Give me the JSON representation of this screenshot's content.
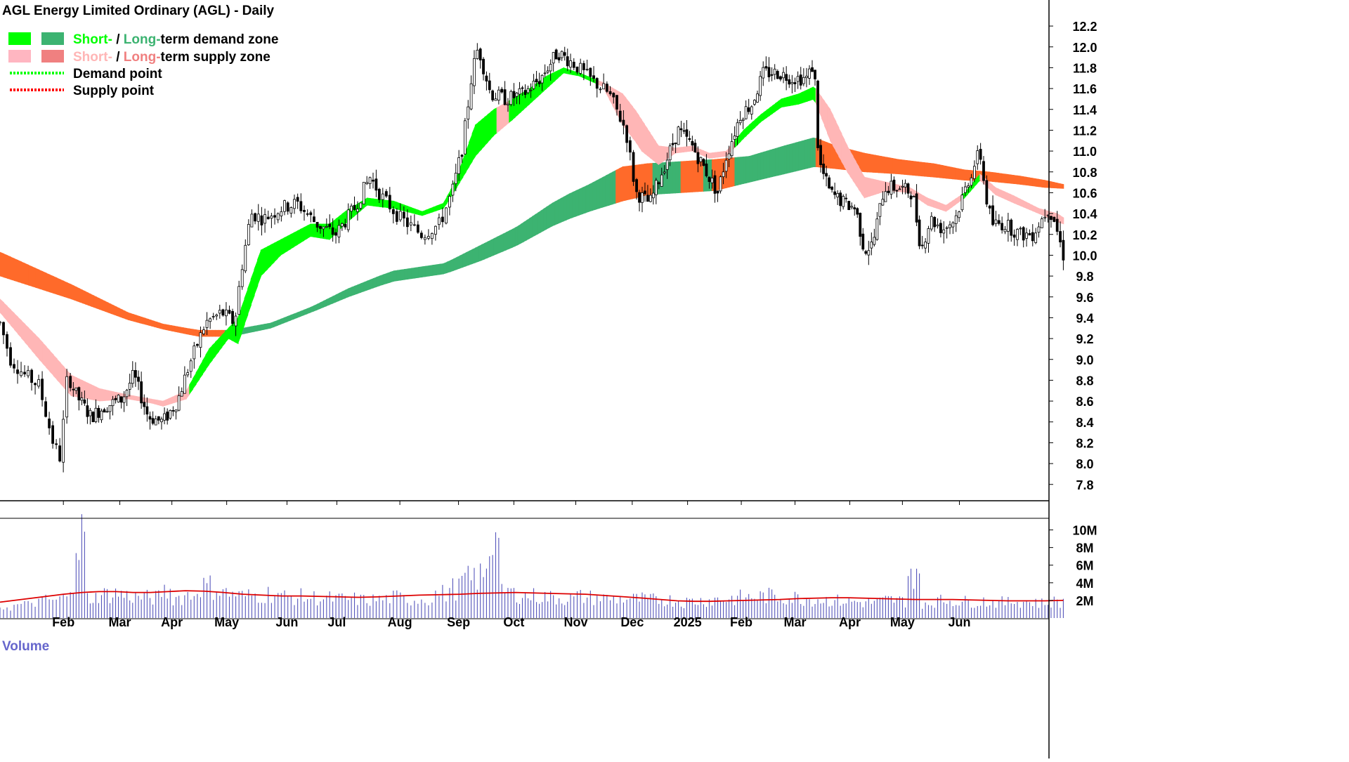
{
  "header": {
    "title": "AGL Energy Limited Ordinary (AGL) - Daily"
  },
  "legend": {
    "items": [
      {
        "parts": [
          {
            "text": "Short-",
            "color": "#00ff00"
          },
          {
            "text": " / ",
            "color": "#000000"
          },
          {
            "text": "Long-",
            "color": "#3cb371"
          },
          {
            "text": "term demand zone",
            "color": "#000000"
          }
        ],
        "swatches": [
          "#00ff00",
          "#3cb371"
        ]
      },
      {
        "parts": [
          {
            "text": "Short-",
            "color": "#ffb6b6"
          },
          {
            "text": " / ",
            "color": "#000000"
          },
          {
            "text": "Long-",
            "color": "#f08080"
          },
          {
            "text": "term supply zone",
            "color": "#000000"
          }
        ],
        "swatches": [
          "#ffb6c1",
          "#f08080"
        ]
      },
      {
        "parts": [
          {
            "text": "Demand point",
            "color": "#000000"
          }
        ],
        "line": "#00ff00"
      },
      {
        "parts": [
          {
            "text": "Supply point",
            "color": "#000000"
          }
        ],
        "line": "#ff0000"
      }
    ]
  },
  "colors": {
    "short_demand": "#00ff00",
    "long_demand": "#3cb371",
    "short_supply": "#ffb6b6",
    "long_supply": "#ff6a2a",
    "candle": "#000000",
    "volume_bar": "#5555bb",
    "volume_avg": "#dd0000",
    "volume_label": "#6666cc"
  },
  "chart_data": {
    "type": "line",
    "title": "AGL Energy Limited Ordinary (AGL) - Daily",
    "xlabel": "",
    "ylabel": "",
    "x_ticks": [
      "Feb",
      "Mar",
      "Apr",
      "May",
      "Jun",
      "Jul",
      "Aug",
      "Sep",
      "Oct",
      "Nov",
      "Dec",
      "2025",
      "Feb",
      "Mar",
      "Apr",
      "May",
      "Jun"
    ],
    "y_ticks": [
      "12.2",
      "12.0",
      "11.8",
      "11.6",
      "11.4",
      "11.2",
      "11.0",
      "10.8",
      "10.6",
      "10.4",
      "10.2",
      "10.0",
      "9.8",
      "9.6",
      "9.4",
      "9.2",
      "9.0",
      "8.8",
      "8.6",
      "8.4",
      "8.2",
      "8.0",
      "7.8"
    ],
    "ylim": [
      7.65,
      12.45
    ],
    "grid": false,
    "legend_position": "top-left",
    "price_path": [
      {
        "m": 0.0,
        "p": 9.35
      },
      {
        "m": 0.15,
        "p": 9.0
      },
      {
        "m": 0.35,
        "p": 8.85
      },
      {
        "m": 0.55,
        "p": 8.75
      },
      {
        "m": 0.75,
        "p": 8.2
      },
      {
        "m": 0.85,
        "p": 8.05
      },
      {
        "m": 0.95,
        "p": 8.85
      },
      {
        "m": 1.1,
        "p": 8.65
      },
      {
        "m": 1.35,
        "p": 8.45
      },
      {
        "m": 1.6,
        "p": 8.55
      },
      {
        "m": 1.9,
        "p": 8.62
      },
      {
        "m": 2.1,
        "p": 8.85
      },
      {
        "m": 2.35,
        "p": 8.45
      },
      {
        "m": 2.6,
        "p": 8.4
      },
      {
        "m": 2.85,
        "p": 8.6
      },
      {
        "m": 3.05,
        "p": 8.95
      },
      {
        "m": 3.3,
        "p": 9.35
      },
      {
        "m": 3.55,
        "p": 9.45
      },
      {
        "m": 3.75,
        "p": 9.35
      },
      {
        "m": 3.85,
        "p": 9.85
      },
      {
        "m": 4.0,
        "p": 10.4
      },
      {
        "m": 4.2,
        "p": 10.35
      },
      {
        "m": 4.45,
        "p": 10.45
      },
      {
        "m": 4.7,
        "p": 10.5
      },
      {
        "m": 5.0,
        "p": 10.3
      },
      {
        "m": 5.3,
        "p": 10.2
      },
      {
        "m": 5.6,
        "p": 10.45
      },
      {
        "m": 5.85,
        "p": 10.75
      },
      {
        "m": 6.05,
        "p": 10.55
      },
      {
        "m": 6.3,
        "p": 10.35
      },
      {
        "m": 6.6,
        "p": 10.2
      },
      {
        "m": 6.85,
        "p": 10.3
      },
      {
        "m": 7.05,
        "p": 10.65
      },
      {
        "m": 7.2,
        "p": 11.05
      },
      {
        "m": 7.35,
        "p": 11.75
      },
      {
        "m": 7.45,
        "p": 12.0
      },
      {
        "m": 7.65,
        "p": 11.55
      },
      {
        "m": 7.9,
        "p": 11.5
      },
      {
        "m": 8.2,
        "p": 11.55
      },
      {
        "m": 8.5,
        "p": 11.7
      },
      {
        "m": 8.8,
        "p": 11.95
      },
      {
        "m": 9.05,
        "p": 11.85
      },
      {
        "m": 9.3,
        "p": 11.7
      },
      {
        "m": 9.6,
        "p": 11.55
      },
      {
        "m": 9.85,
        "p": 11.2
      },
      {
        "m": 10.0,
        "p": 10.6
      },
      {
        "m": 10.25,
        "p": 10.5
      },
      {
        "m": 10.5,
        "p": 10.85
      },
      {
        "m": 10.75,
        "p": 11.2
      },
      {
        "m": 11.0,
        "p": 11.05
      },
      {
        "m": 11.25,
        "p": 10.8
      },
      {
        "m": 11.45,
        "p": 10.6
      },
      {
        "m": 11.6,
        "p": 10.95
      },
      {
        "m": 11.85,
        "p": 11.35
      },
      {
        "m": 12.05,
        "p": 11.45
      },
      {
        "m": 12.25,
        "p": 11.75
      },
      {
        "m": 12.5,
        "p": 11.75
      },
      {
        "m": 12.75,
        "p": 11.7
      },
      {
        "m": 13.0,
        "p": 11.7
      },
      {
        "m": 13.12,
        "p": 11.85
      },
      {
        "m": 13.2,
        "p": 10.9
      },
      {
        "m": 13.4,
        "p": 10.6
      },
      {
        "m": 13.65,
        "p": 10.5
      },
      {
        "m": 13.85,
        "p": 10.45
      },
      {
        "m": 14.0,
        "p": 10.05
      },
      {
        "m": 14.15,
        "p": 10.1
      },
      {
        "m": 14.35,
        "p": 10.65
      },
      {
        "m": 14.6,
        "p": 10.65
      },
      {
        "m": 14.85,
        "p": 10.6
      },
      {
        "m": 15.0,
        "p": 10.05
      },
      {
        "m": 15.15,
        "p": 10.35
      },
      {
        "m": 15.35,
        "p": 10.25
      },
      {
        "m": 15.55,
        "p": 10.35
      },
      {
        "m": 15.75,
        "p": 10.7
      },
      {
        "m": 15.95,
        "p": 11.0
      },
      {
        "m": 16.05,
        "p": 10.55
      },
      {
        "m": 16.15,
        "p": 10.3
      },
      {
        "m": 16.35,
        "p": 10.3
      },
      {
        "m": 16.6,
        "p": 10.2
      },
      {
        "m": 16.8,
        "p": 10.2
      },
      {
        "m": 17.05,
        "p": 10.45
      },
      {
        "m": 17.15,
        "p": 10.35
      },
      {
        "m": 17.3,
        "p": 10.0
      }
    ],
    "short_zone": [
      {
        "m": 0.0,
        "lo": 9.45,
        "hi": 9.58
      },
      {
        "m": 0.55,
        "lo": 9.0,
        "hi": 9.2
      },
      {
        "m": 1.0,
        "lo": 8.65,
        "hi": 8.85
      },
      {
        "m": 1.5,
        "lo": 8.6,
        "hi": 8.72
      },
      {
        "m": 2.0,
        "lo": 8.62,
        "hi": 8.66
      },
      {
        "m": 2.4,
        "lo": 8.58,
        "hi": 8.62
      },
      {
        "m": 2.6,
        "lo": 8.55,
        "hi": 8.6
      },
      {
        "m": 3.0,
        "lo": 8.62,
        "hi": 8.7
      },
      {
        "m": 3.35,
        "lo": 8.95,
        "hi": 9.1
      },
      {
        "m": 3.65,
        "lo": 9.2,
        "hi": 9.3
      },
      {
        "m": 3.8,
        "lo": 9.15,
        "hi": 9.4
      },
      {
        "m": 4.15,
        "lo": 9.8,
        "hi": 10.05
      },
      {
        "m": 4.45,
        "lo": 10.0,
        "hi": 10.15
      },
      {
        "m": 4.9,
        "lo": 10.18,
        "hi": 10.3
      },
      {
        "m": 5.2,
        "lo": 10.15,
        "hi": 10.3
      },
      {
        "m": 5.45,
        "lo": 10.3,
        "hi": 10.42
      },
      {
        "m": 5.8,
        "lo": 10.48,
        "hi": 10.55
      },
      {
        "m": 6.2,
        "lo": 10.45,
        "hi": 10.52
      },
      {
        "m": 6.6,
        "lo": 10.38,
        "hi": 10.42
      },
      {
        "m": 6.9,
        "lo": 10.45,
        "hi": 10.5
      },
      {
        "m": 7.1,
        "lo": 10.65,
        "hi": 10.75
      },
      {
        "m": 7.4,
        "lo": 10.95,
        "hi": 11.25
      },
      {
        "m": 7.7,
        "lo": 11.15,
        "hi": 11.4
      },
      {
        "m": 8.0,
        "lo": 11.3,
        "hi": 11.5
      },
      {
        "m": 8.3,
        "lo": 11.45,
        "hi": 11.6
      },
      {
        "m": 8.6,
        "lo": 11.6,
        "hi": 11.72
      },
      {
        "m": 8.9,
        "lo": 11.75,
        "hi": 11.8
      },
      {
        "m": 9.15,
        "lo": 11.72,
        "hi": 11.75
      },
      {
        "m": 9.5,
        "lo": 11.62,
        "hi": 11.66
      },
      {
        "m": 9.8,
        "lo": 11.25,
        "hi": 11.55
      },
      {
        "m": 10.1,
        "lo": 11.0,
        "hi": 11.3
      },
      {
        "m": 10.4,
        "lo": 10.87,
        "hi": 11.05
      },
      {
        "m": 10.7,
        "lo": 10.98,
        "hi": 11.03
      },
      {
        "m": 11.0,
        "lo": 11.0,
        "hi": 11.05
      },
      {
        "m": 11.3,
        "lo": 10.93,
        "hi": 10.98
      },
      {
        "m": 11.6,
        "lo": 10.95,
        "hi": 11.0
      },
      {
        "m": 11.9,
        "lo": 11.12,
        "hi": 11.2
      },
      {
        "m": 12.2,
        "lo": 11.28,
        "hi": 11.35
      },
      {
        "m": 12.55,
        "lo": 11.42,
        "hi": 11.5
      },
      {
        "m": 12.85,
        "lo": 11.45,
        "hi": 11.55
      },
      {
        "m": 13.12,
        "lo": 11.5,
        "hi": 11.62
      },
      {
        "m": 13.4,
        "lo": 11.1,
        "hi": 11.4
      },
      {
        "m": 13.7,
        "lo": 10.8,
        "hi": 11.05
      },
      {
        "m": 14.0,
        "lo": 10.55,
        "hi": 10.75
      },
      {
        "m": 14.4,
        "lo": 10.62,
        "hi": 10.7
      },
      {
        "m": 14.8,
        "lo": 10.6,
        "hi": 10.65
      },
      {
        "m": 15.1,
        "lo": 10.48,
        "hi": 10.55
      },
      {
        "m": 15.4,
        "lo": 10.42,
        "hi": 10.48
      },
      {
        "m": 15.7,
        "lo": 10.55,
        "hi": 10.6
      },
      {
        "m": 15.95,
        "lo": 10.72,
        "hi": 10.78
      },
      {
        "m": 16.2,
        "lo": 10.58,
        "hi": 10.65
      },
      {
        "m": 16.5,
        "lo": 10.5,
        "hi": 10.57
      },
      {
        "m": 16.9,
        "lo": 10.4,
        "hi": 10.45
      },
      {
        "m": 17.2,
        "lo": 10.32,
        "hi": 10.4
      },
      {
        "m": 17.3,
        "lo": 10.3,
        "hi": 10.36
      }
    ],
    "long_zone": [
      {
        "m": 0.0,
        "lo": 9.8,
        "hi": 10.03
      },
      {
        "m": 1.0,
        "lo": 9.58,
        "hi": 9.72
      },
      {
        "m": 2.0,
        "lo": 9.38,
        "hi": 9.45
      },
      {
        "m": 2.6,
        "lo": 9.29,
        "hi": 9.34
      },
      {
        "m": 3.2,
        "lo": 9.22,
        "hi": 9.28
      },
      {
        "m": 3.7,
        "lo": 9.22,
        "hi": 9.28
      },
      {
        "m": 4.3,
        "lo": 9.3,
        "hi": 9.35
      },
      {
        "m": 4.9,
        "lo": 9.45,
        "hi": 9.5
      },
      {
        "m": 5.5,
        "lo": 9.6,
        "hi": 9.68
      },
      {
        "m": 6.2,
        "lo": 9.75,
        "hi": 9.85
      },
      {
        "m": 6.9,
        "lo": 9.82,
        "hi": 9.92
      },
      {
        "m": 7.5,
        "lo": 9.95,
        "hi": 10.1
      },
      {
        "m": 8.1,
        "lo": 10.1,
        "hi": 10.28
      },
      {
        "m": 8.7,
        "lo": 10.28,
        "hi": 10.5
      },
      {
        "m": 9.3,
        "lo": 10.42,
        "hi": 10.68
      },
      {
        "m": 9.8,
        "lo": 10.52,
        "hi": 10.85
      },
      {
        "m": 10.2,
        "lo": 10.58,
        "hi": 10.88
      },
      {
        "m": 10.8,
        "lo": 10.6,
        "hi": 10.9
      },
      {
        "m": 11.4,
        "lo": 10.62,
        "hi": 10.92
      },
      {
        "m": 12.0,
        "lo": 10.7,
        "hi": 10.95
      },
      {
        "m": 12.6,
        "lo": 10.78,
        "hi": 11.05
      },
      {
        "m": 13.12,
        "lo": 10.85,
        "hi": 11.13
      },
      {
        "m": 13.5,
        "lo": 10.83,
        "hi": 11.05
      },
      {
        "m": 14.0,
        "lo": 10.8,
        "hi": 10.98
      },
      {
        "m": 14.6,
        "lo": 10.78,
        "hi": 10.92
      },
      {
        "m": 15.2,
        "lo": 10.75,
        "hi": 10.88
      },
      {
        "m": 15.7,
        "lo": 10.72,
        "hi": 10.82
      },
      {
        "m": 16.1,
        "lo": 10.71,
        "hi": 10.8
      },
      {
        "m": 16.6,
        "lo": 10.68,
        "hi": 10.76
      },
      {
        "m": 17.0,
        "lo": 10.65,
        "hi": 10.72
      },
      {
        "m": 17.3,
        "lo": 10.64,
        "hi": 10.68
      }
    ],
    "demand_periods_short": [
      [
        3.05,
        7.75
      ],
      [
        7.95,
        9.4
      ],
      [
        11.75,
        13.15
      ],
      [
        15.65,
        15.95
      ]
    ],
    "demand_periods_long": [
      [
        3.6,
        9.7
      ],
      [
        10.3,
        10.8
      ],
      [
        11.2,
        11.35
      ],
      [
        11.75,
        13.15
      ]
    ],
    "volume": {
      "y_ticks": [
        "10M",
        "8M",
        "6M",
        "4M",
        "2M"
      ],
      "ylim": [
        0,
        11000000
      ],
      "label": "Volume",
      "bars": [
        1400000,
        1600000,
        2000000,
        2200000,
        2600000,
        9800000,
        2500000,
        2900000,
        3000000,
        2700000,
        2600000,
        2500000,
        3300000,
        2500000,
        2800000,
        3900000,
        3600000,
        3000000,
        2700000,
        2800000,
        3000000,
        2600000,
        2600000,
        2500000,
        2400000,
        2300000,
        2300000,
        2200000,
        2300000,
        2500000,
        2300000,
        2400000,
        3000000,
        3600000,
        4600000,
        5000000,
        9100000,
        3300000,
        2900000,
        2700000,
        2600000,
        2500000,
        2400000,
        2600000,
        2500000,
        2400000,
        2400000,
        2300000,
        2200000,
        2300000,
        2200000,
        2000000,
        2100000,
        2200000,
        2300000,
        2400000,
        2500000,
        2600000,
        2700000,
        2600000,
        2500000,
        2400000,
        2300000,
        2200000,
        2100000,
        2000000,
        1900000,
        2000000,
        2200000,
        2100000,
        5600000,
        1900000,
        2100000,
        2200000,
        2000000,
        2100000,
        2000000,
        1900000,
        2100000,
        2000000,
        1800000,
        2000000
      ],
      "average": [
        1800000,
        2100000,
        2400000,
        2700000,
        2900000,
        3000000,
        3000000,
        2900000,
        2900000,
        3000000,
        3100000,
        3050000,
        2900000,
        2700000,
        2600000,
        2500000,
        2500000,
        2450000,
        2400000,
        2350000,
        2400000,
        2500000,
        2600000,
        2650000,
        2700000,
        2800000,
        2850000,
        2900000,
        2850000,
        2800000,
        2750000,
        2700000,
        2550000,
        2400000,
        2250000,
        2100000,
        1950000,
        1900000,
        1900000,
        1950000,
        2000000,
        2050000,
        2100000,
        2200000,
        2250000,
        2300000,
        2300000,
        2250000,
        2200000,
        2150000,
        2100000,
        2100000,
        2100000,
        2050000,
        2000000,
        1950000,
        1950000,
        1950000,
        2000000
      ]
    }
  }
}
